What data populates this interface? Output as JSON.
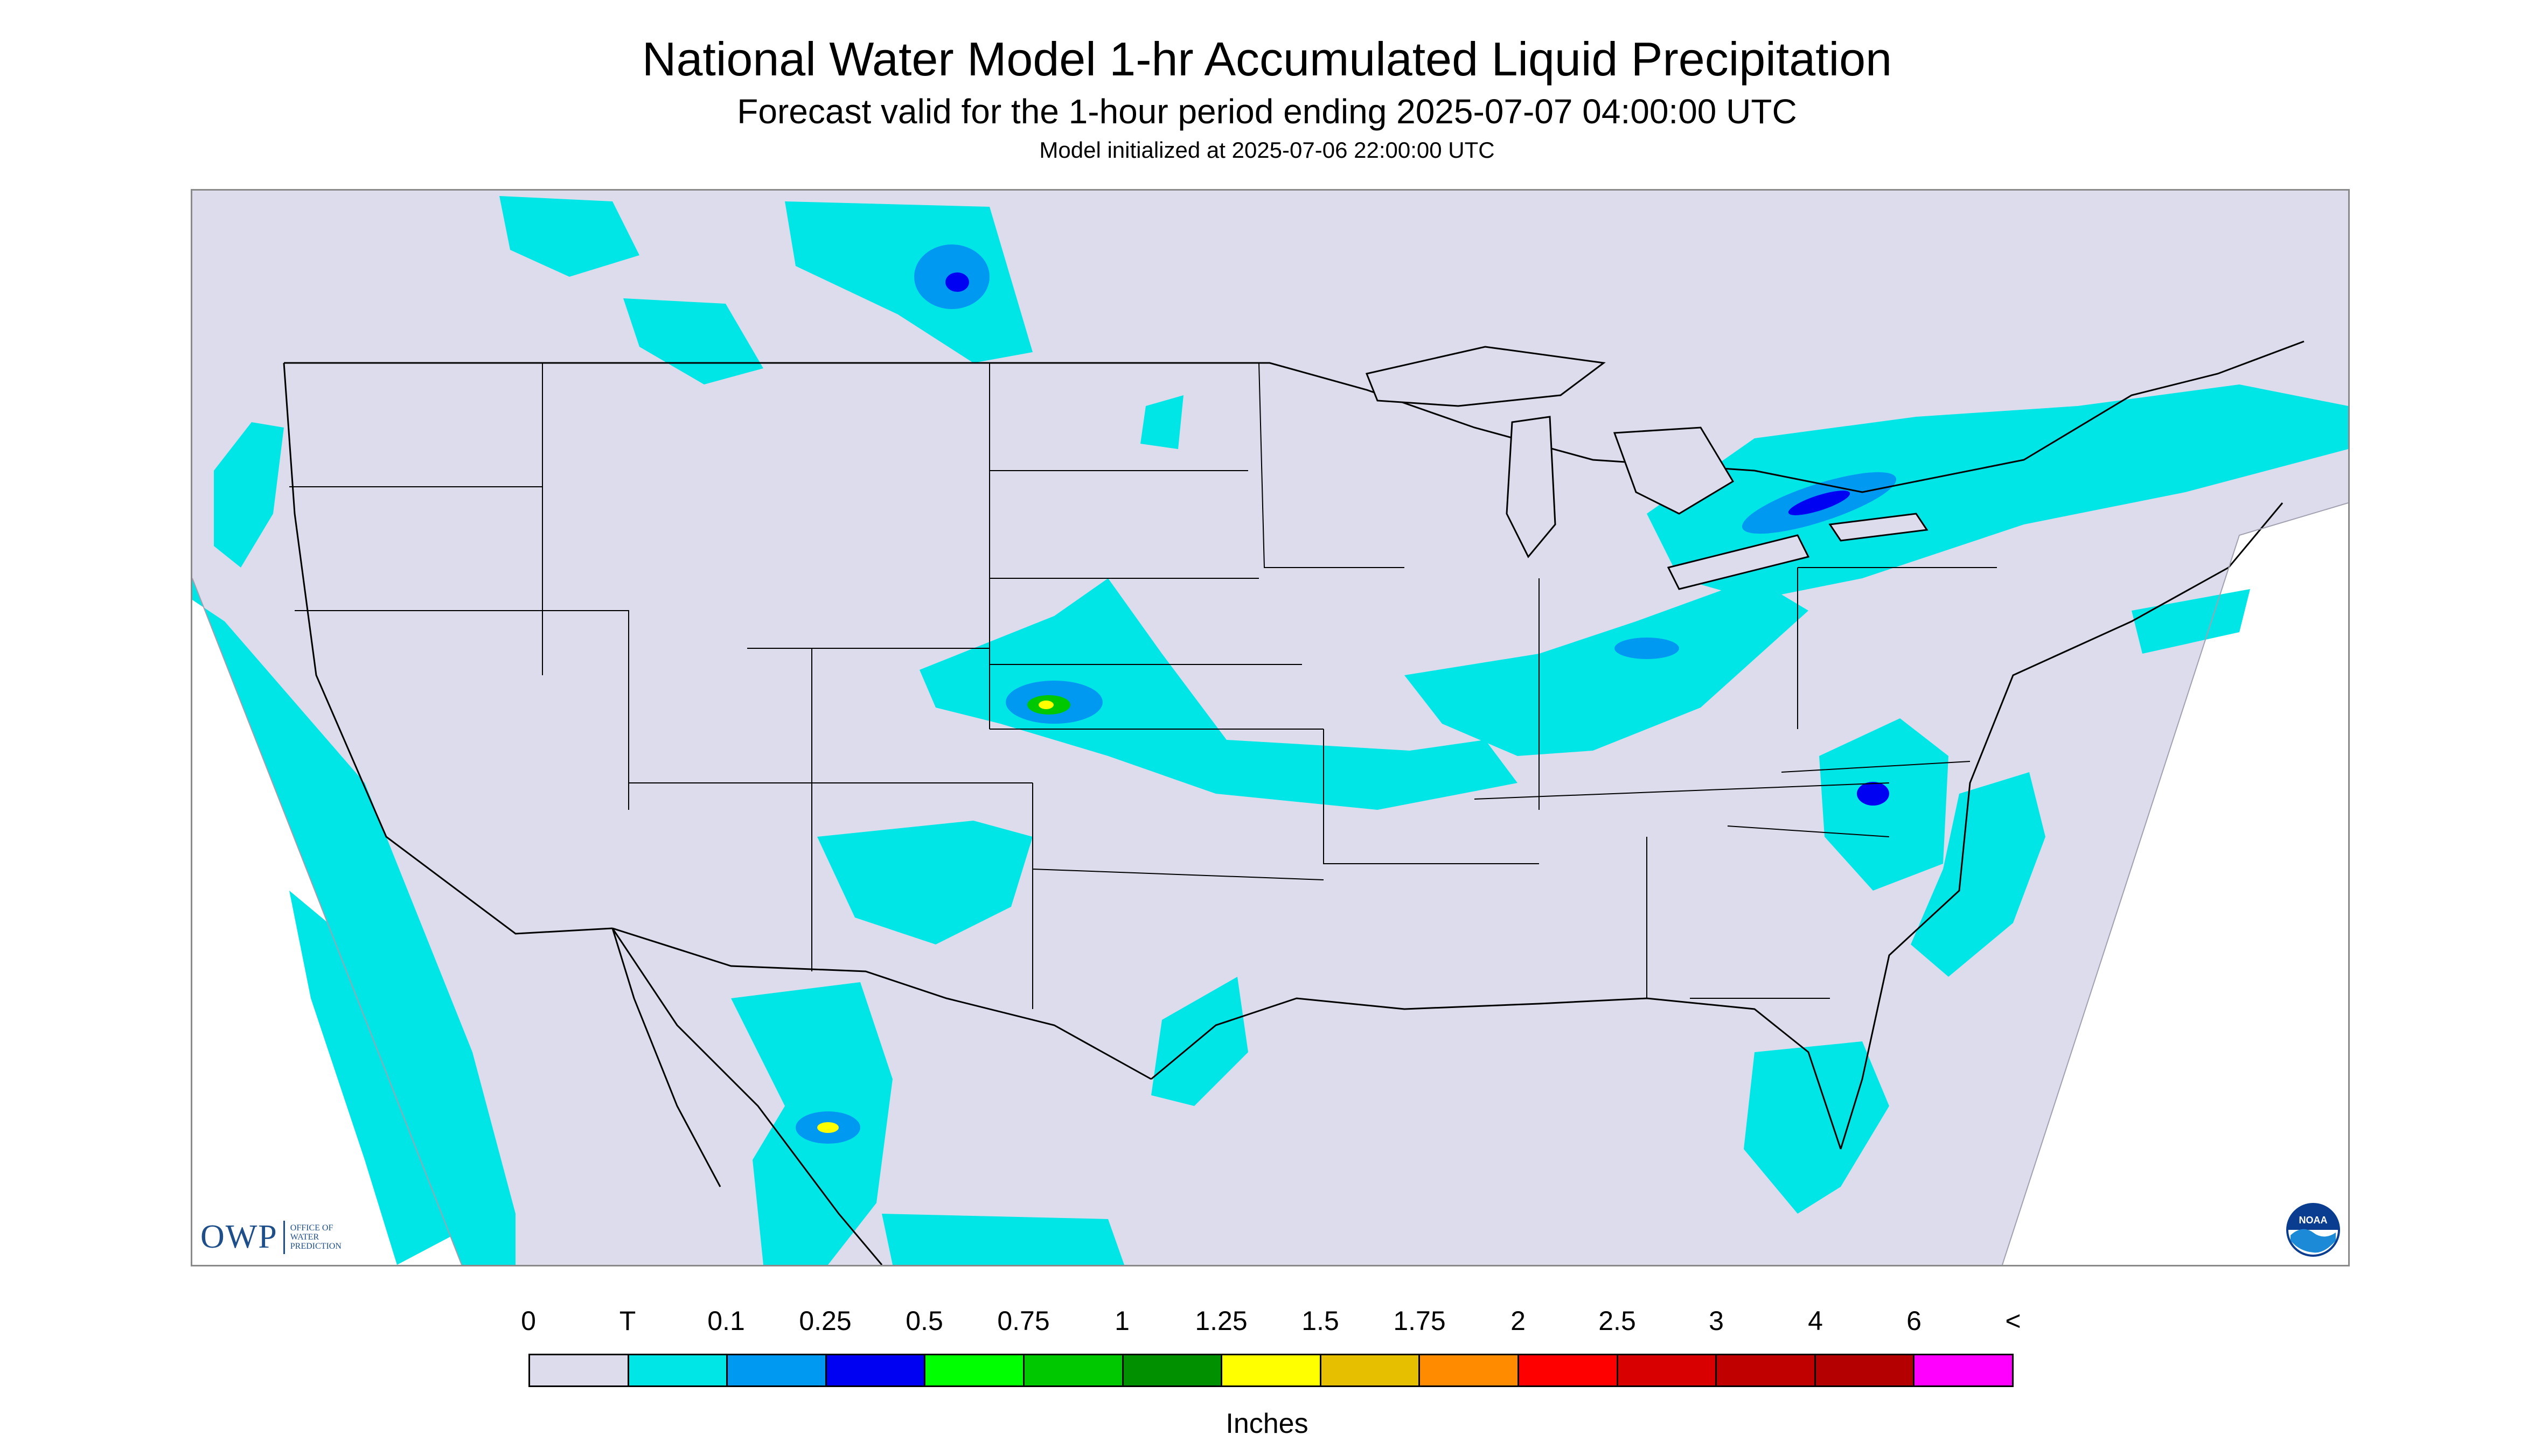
{
  "header": {
    "title": "National Water Model 1-hr Accumulated Liquid Precipitation",
    "subtitle": "Forecast valid for the 1-hour period ending 2025-07-07 04:00:00 UTC",
    "initialized": "Model initialized at 2025-07-06 22:00:00 UTC"
  },
  "map": {
    "background_color": "#dcdcec",
    "outside_domain_color": "#ffffff",
    "boundary_color": "#000000",
    "precip_areas": [
      {
        "region": "Pacific Northwest coast",
        "class": "T"
      },
      {
        "region": "Eastern Pacific offshore",
        "class": "T"
      },
      {
        "region": "Southern Canadian prairies",
        "class": "0.25"
      },
      {
        "region": "Western Kansas / eastern Colorado",
        "class": "0.75"
      },
      {
        "region": "Central Plains to Ohio Valley band",
        "class": "0.1"
      },
      {
        "region": "Great Lakes to New England band",
        "class": "0.25"
      },
      {
        "region": "New Mexico / southern Rockies",
        "class": "0.25"
      },
      {
        "region": "Sierra Madre Occidental, Mexico",
        "class": "1.25"
      },
      {
        "region": "Virginia / North Carolina",
        "class": "0.25"
      },
      {
        "region": "Gulf Coast and Florida",
        "class": "T"
      },
      {
        "region": "Western Atlantic offshore",
        "class": "0.1"
      }
    ]
  },
  "logos": {
    "owp": {
      "text": "OWP",
      "line1": "OFFICE OF",
      "line2": "WATER",
      "line3": "PREDICTION"
    },
    "noaa": {
      "text": "NOAA",
      "icon": "noaa-logo"
    }
  },
  "legend": {
    "labels": [
      "0",
      "T",
      "0.1",
      "0.25",
      "0.5",
      "0.75",
      "1",
      "1.25",
      "1.5",
      "1.75",
      "2",
      "2.5",
      "3",
      "4",
      "6",
      "<"
    ],
    "colors": [
      "#dcdcec",
      "#00e6e6",
      "#0099f2",
      "#0000f2",
      "#00ff00",
      "#00c800",
      "#009000",
      "#ffff00",
      "#e6c000",
      "#ff8c00",
      "#ff0000",
      "#d80000",
      "#c00000",
      "#b40000",
      "#ff00ff",
      "#9a52c6"
    ],
    "units": "Inches"
  }
}
